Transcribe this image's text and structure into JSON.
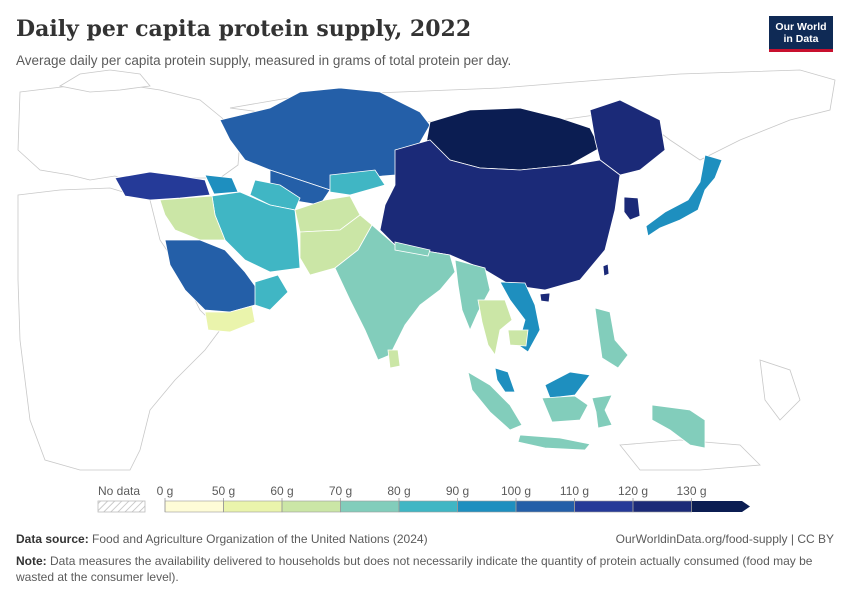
{
  "header": {
    "title": "Daily per capita protein supply, 2022",
    "subtitle": "Average daily per capita protein supply, measured in grams of total protein per day.",
    "logo_line1": "Our World",
    "logo_line2": "in Data",
    "logo_colors": {
      "background": "#0f2a55",
      "accent": "#c8102e"
    }
  },
  "legend": {
    "no_data_label": "No data",
    "ticks": [
      "0 g",
      "50 g",
      "60 g",
      "70 g",
      "80 g",
      "90 g",
      "100 g",
      "110 g",
      "120 g",
      "130 g"
    ],
    "colors": [
      "#fefcd7",
      "#eaf4ac",
      "#cbe6a6",
      "#82cdbb",
      "#40b6c4",
      "#1e8fbf",
      "#245fa8",
      "#253a98",
      "#1b2a78",
      "#0b1d52"
    ]
  },
  "footer": {
    "source_label": "Data source:",
    "source_text": "Food and Agriculture Organization of the United Nations (2024)",
    "url": "OurWorldinData.org/food-supply | CC BY",
    "note_label": "Note:",
    "note_text": "Data measures the availability delivered to households but does not necessarily indicate the quantity of protein actually consumed (food may be wasted at the consumer level)."
  }
}
